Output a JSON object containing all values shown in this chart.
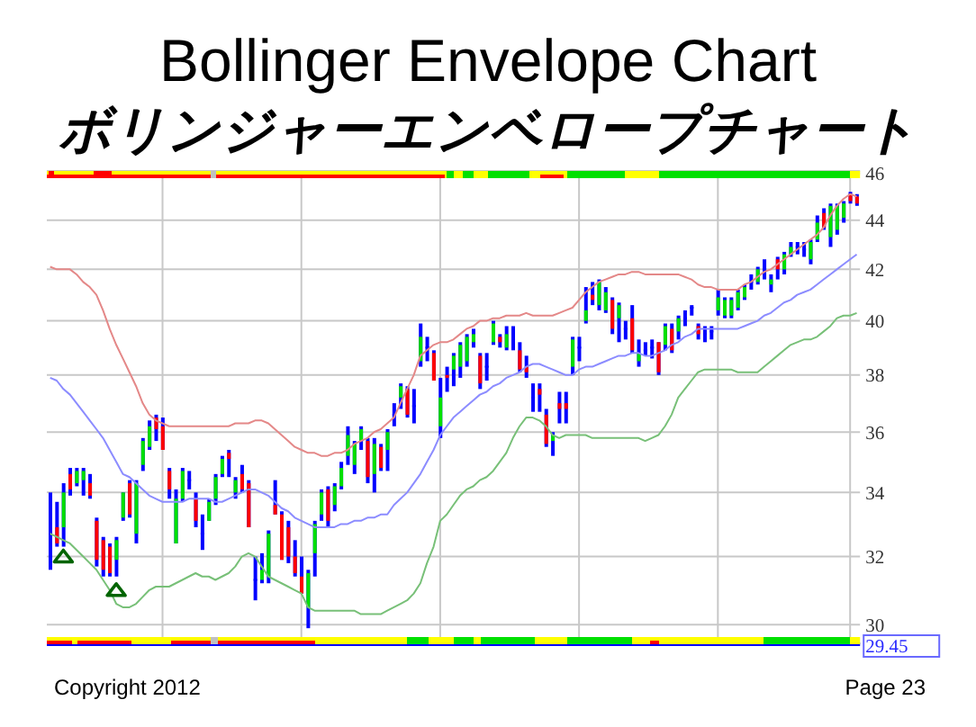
{
  "chart_data": {
    "type": "candlestick",
    "title": "Bollinger Envelope Chart",
    "subtitle": "ボリンジャーエンベロープチャート",
    "categories": [
      null,
      null,
      null,
      null,
      null,
      null,
      null,
      null,
      null,
      null,
      null,
      null,
      null,
      null,
      null,
      null,
      null,
      null,
      null,
      null,
      null,
      null,
      null,
      null,
      null,
      null,
      null,
      null,
      null,
      null,
      null,
      null,
      null,
      null,
      null,
      null,
      null,
      null,
      null,
      null,
      null,
      null,
      null,
      null,
      null,
      null,
      null,
      null,
      null,
      null,
      null,
      null,
      null,
      null,
      null,
      null,
      null,
      null,
      null,
      null,
      null,
      null,
      null,
      null,
      null,
      null,
      null,
      null,
      null,
      null,
      null,
      null,
      null,
      null,
      null,
      null,
      null,
      null,
      null,
      null,
      null,
      null,
      null,
      null,
      null,
      null,
      null,
      null,
      null,
      null,
      null,
      null,
      null,
      null,
      null,
      null,
      null,
      null,
      null,
      null,
      null,
      null,
      null,
      null,
      null,
      null,
      null,
      null,
      null,
      null,
      null,
      null,
      null,
      null,
      null,
      null,
      null,
      null,
      null,
      null,
      null,
      null,
      null
    ],
    "ohlc": [
      [
        32.8,
        34.0,
        31.6,
        32.8
      ],
      [
        32.9,
        33.7,
        32.3,
        32.4
      ],
      [
        32.9,
        34.3,
        32.3,
        34.0
      ],
      [
        34.6,
        34.8,
        33.9,
        34.1
      ],
      [
        34.3,
        34.8,
        34.2,
        34.7
      ],
      [
        34.4,
        34.8,
        33.9,
        34.7
      ],
      [
        34.3,
        34.6,
        33.8,
        33.9
      ],
      [
        33.1,
        33.2,
        31.7,
        31.9
      ],
      [
        32.5,
        32.6,
        31.4,
        31.6
      ],
      [
        32.3,
        32.4,
        31.4,
        31.5
      ],
      [
        31.9,
        32.6,
        31.4,
        32.5
      ],
      [
        33.2,
        34.0,
        33.1,
        34.0
      ],
      [
        34.3,
        34.4,
        33.2,
        33.3
      ],
      [
        32.7,
        34.4,
        32.4,
        34.3
      ],
      [
        34.9,
        35.8,
        34.7,
        35.7
      ],
      [
        35.5,
        36.4,
        35.4,
        36.2
      ],
      [
        36.5,
        36.6,
        35.7,
        36.1
      ],
      [
        36.2,
        36.5,
        35.4,
        35.4
      ],
      [
        34.7,
        34.8,
        33.8,
        34.1
      ],
      [
        32.4,
        34.1,
        32.4,
        33.8
      ],
      [
        33.8,
        34.8,
        33.7,
        34.7
      ],
      [
        34.4,
        34.7,
        34.1,
        34.4
      ],
      [
        33.8,
        34.0,
        32.9,
        33.1
      ],
      [
        32.7,
        33.3,
        32.2,
        32.7
      ],
      [
        33.1,
        33.8,
        33.1,
        33.7
      ],
      [
        33.8,
        34.6,
        33.6,
        34.5
      ],
      [
        34.6,
        35.2,
        34.5,
        35.1
      ],
      [
        35.3,
        35.4,
        34.5,
        35.1
      ],
      [
        34.0,
        34.5,
        33.8,
        34.4
      ],
      [
        34.6,
        34.9,
        34.0,
        34.1
      ],
      [
        34.3,
        34.4,
        32.9,
        32.9
      ],
      [
        31.3,
        32.0,
        30.7,
        31.3
      ],
      [
        31.3,
        32.1,
        31.2,
        31.6
      ],
      [
        31.4,
        32.8,
        31.2,
        32.7
      ],
      [
        33.6,
        34.4,
        33.3,
        33.3
      ],
      [
        33.3,
        33.4,
        31.9,
        31.9
      ],
      [
        32.9,
        33.1,
        31.8,
        32.0
      ],
      [
        32.0,
        32.5,
        31.4,
        31.5
      ],
      [
        31.4,
        32.0,
        30.9,
        30.9
      ],
      [
        30.5,
        31.6,
        29.9,
        31.5
      ],
      [
        32.1,
        33.1,
        31.4,
        33.0
      ],
      [
        33.3,
        34.1,
        33.1,
        34.0
      ],
      [
        34.1,
        34.2,
        32.9,
        33.1
      ],
      [
        33.6,
        34.3,
        33.4,
        34.2
      ],
      [
        34.2,
        35.0,
        34.1,
        34.8
      ],
      [
        35.2,
        36.2,
        34.9,
        35.9
      ],
      [
        34.9,
        35.7,
        34.6,
        35.6
      ],
      [
        35.7,
        36.2,
        35.4,
        36.1
      ],
      [
        35.7,
        35.8,
        34.3,
        34.5
      ],
      [
        34.6,
        35.8,
        34.0,
        35.6
      ],
      [
        35.5,
        35.6,
        34.7,
        34.8
      ],
      [
        35.4,
        36.1,
        34.7,
        36.0
      ],
      [
        36.6,
        37.0,
        36.2,
        36.6
      ],
      [
        37.2,
        37.7,
        36.8,
        37.6
      ],
      [
        37.5,
        37.6,
        36.5,
        36.6
      ],
      [
        36.9,
        37.5,
        36.3,
        36.9
      ],
      [
        38.5,
        39.9,
        38.3,
        39.4
      ],
      [
        39.0,
        39.4,
        38.5,
        39.0
      ],
      [
        38.8,
        38.9,
        37.8,
        37.8
      ],
      [
        36.2,
        37.9,
        35.8,
        37.2
      ],
      [
        38.0,
        38.3,
        37.4,
        37.9
      ],
      [
        38.2,
        38.8,
        37.6,
        38.7
      ],
      [
        38.3,
        39.2,
        37.9,
        39.1
      ],
      [
        38.5,
        39.5,
        38.3,
        39.4
      ],
      [
        39.2,
        39.7,
        39.0,
        39.5
      ],
      [
        38.7,
        38.8,
        37.5,
        37.7
      ],
      [
        38.3,
        38.8,
        37.8,
        38.3
      ],
      [
        39.2,
        40.0,
        39.1,
        39.9
      ],
      [
        39.4,
        39.5,
        39.0,
        39.2
      ],
      [
        39.0,
        39.8,
        38.9,
        39.5
      ],
      [
        39.3,
        39.8,
        38.9,
        39.3
      ],
      [
        38.9,
        39.2,
        38.1,
        38.2
      ],
      [
        38.3,
        38.7,
        37.9,
        38.1
      ],
      [
        37.2,
        37.7,
        36.7,
        37.2
      ],
      [
        37.5,
        37.7,
        36.7,
        37.3
      ],
      [
        36.6,
        36.8,
        35.5,
        35.6
      ],
      [
        35.7,
        36.0,
        35.2,
        35.9
      ],
      [
        37.0,
        37.4,
        36.3,
        36.8
      ],
      [
        37.0,
        37.4,
        36.3,
        36.8
      ],
      [
        38.3,
        39.4,
        38.0,
        39.3
      ],
      [
        39.0,
        39.4,
        38.5,
        39.0
      ],
      [
        40.0,
        41.3,
        39.9,
        40.4
      ],
      [
        41.0,
        41.5,
        40.6,
        40.8
      ],
      [
        40.6,
        41.6,
        40.4,
        41.5
      ],
      [
        40.4,
        41.3,
        40.3,
        41.1
      ],
      [
        40.8,
        40.9,
        39.5,
        39.7
      ],
      [
        40.1,
        40.7,
        39.2,
        40.6
      ],
      [
        39.7,
        40.0,
        39.3,
        39.7
      ],
      [
        40.1,
        40.6,
        38.8,
        38.9
      ],
      [
        38.5,
        39.3,
        38.3,
        38.8
      ],
      [
        38.9,
        39.2,
        38.7,
        38.9
      ],
      [
        39.0,
        39.3,
        38.6,
        39.0
      ],
      [
        39.2,
        39.2,
        38.0,
        38.1
      ],
      [
        39.1,
        39.9,
        38.9,
        39.8
      ],
      [
        39.7,
        39.9,
        38.8,
        38.9
      ],
      [
        39.6,
        40.2,
        39.3,
        40.1
      ],
      [
        40.1,
        40.4,
        39.8,
        40.1
      ],
      [
        40.5,
        40.6,
        40.2,
        40.5
      ],
      [
        39.8,
        39.9,
        39.3,
        39.5
      ],
      [
        39.5,
        39.8,
        39.2,
        39.5
      ],
      [
        39.6,
        39.8,
        39.3,
        39.6
      ],
      [
        40.4,
        41.2,
        40.2,
        40.9
      ],
      [
        40.2,
        40.9,
        40.1,
        40.8
      ],
      [
        40.2,
        40.9,
        40.1,
        40.8
      ],
      [
        40.5,
        41.2,
        40.4,
        41.1
      ],
      [
        40.9,
        41.4,
        40.8,
        41.3
      ],
      [
        41.5,
        41.8,
        41.2,
        41.5
      ],
      [
        41.5,
        42.1,
        41.4,
        42.0
      ],
      [
        42.0,
        42.4,
        41.6,
        42.0
      ],
      [
        41.4,
        41.8,
        41.1,
        41.6
      ],
      [
        42.4,
        42.5,
        41.6,
        42.0
      ],
      [
        42.0,
        42.7,
        41.8,
        42.6
      ],
      [
        42.6,
        43.1,
        42.5,
        42.9
      ],
      [
        42.9,
        43.1,
        42.6,
        42.9
      ],
      [
        42.8,
        43.1,
        42.5,
        42.8
      ],
      [
        42.4,
        43.2,
        42.2,
        43.1
      ],
      [
        43.2,
        44.2,
        43.1,
        43.9
      ],
      [
        44.3,
        44.5,
        43.6,
        43.7
      ],
      [
        43.3,
        44.7,
        42.9,
        44.6
      ],
      [
        43.6,
        44.7,
        43.4,
        44.6
      ],
      [
        44.1,
        44.8,
        43.9,
        44.7
      ],
      [
        45.1,
        45.2,
        44.7,
        44.8
      ],
      [
        45.0,
        45.1,
        44.6,
        44.7
      ]
    ],
    "color": "#0000ff",
    "colors": [
      "#0000ff",
      "#ff0000",
      "#00e000",
      "#ff0000",
      "#00e000",
      "#00e000",
      "#ff0000",
      "#ff0000",
      "#ff0000",
      "#ff0000",
      "#00e000",
      "#00e000",
      "#ff0000",
      "#00e000",
      "#00e000",
      "#00e000",
      "#ff0000",
      "#ff0000",
      "#ff0000",
      "#00e000",
      "#00e000",
      "#0000ff",
      "#ff0000",
      "#0000ff",
      "#00e000",
      "#00e000",
      "#00e000",
      "#ff0000",
      "#00e000",
      "#ff0000",
      "#ff0000",
      "#0000ff",
      "#00e000",
      "#00e000",
      "#ff0000",
      "#ff0000",
      "#ff0000",
      "#ff0000",
      "#ff0000",
      "#00e000",
      "#00e000",
      "#00e000",
      "#ff0000",
      "#00e000",
      "#00e000",
      "#00e000",
      "#00e000",
      "#00e000",
      "#ff0000",
      "#00e000",
      "#ff0000",
      "#00e000",
      "#0000ff",
      "#00e000",
      "#ff0000",
      "#0000ff",
      "#00e000",
      "#0000ff",
      "#ff0000",
      "#00e000",
      "#ff0000",
      "#00e000",
      "#00e000",
      "#00e000",
      "#00e000",
      "#ff0000",
      "#0000ff",
      "#00e000",
      "#ff0000",
      "#00e000",
      "#0000ff",
      "#ff0000",
      "#ff0000",
      "#0000ff",
      "#ff0000",
      "#ff0000",
      "#00e000",
      "#ff0000",
      "#ff0000",
      "#00e000",
      "#0000ff",
      "#00e000",
      "#ff0000",
      "#00e000",
      "#00e000",
      "#ff0000",
      "#00e000",
      "#0000ff",
      "#ff0000",
      "#00e000",
      "#0000ff",
      "#0000ff",
      "#ff0000",
      "#00e000",
      "#ff0000",
      "#00e000",
      "#0000ff",
      "#0000ff",
      "#ff0000",
      "#0000ff",
      "#0000ff",
      "#00e000",
      "#00e000",
      "#00e000",
      "#00e000",
      "#00e000",
      "#0000ff",
      "#00e000",
      "#0000ff",
      "#00e000",
      "#ff0000",
      "#00e000",
      "#00e000",
      "#0000ff",
      "#0000ff",
      "#00e000",
      "#00e000",
      "#ff0000",
      "#00e000",
      "#00e000",
      "#00e000",
      "#ff0000",
      "#ff0000"
    ],
    "series": [
      {
        "type": "line",
        "color": "#e48888",
        "values": [
          42.1,
          42.0,
          42.0,
          42.0,
          41.8,
          41.5,
          41.3,
          41.0,
          40.4,
          39.7,
          39.1,
          38.6,
          38.1,
          37.6,
          37.0,
          36.6,
          36.4,
          36.3,
          36.2,
          36.2,
          36.2,
          36.2,
          36.2,
          36.2,
          36.2,
          36.2,
          36.2,
          36.2,
          36.3,
          36.3,
          36.3,
          36.4,
          36.4,
          36.3,
          36.1,
          35.9,
          35.7,
          35.5,
          35.4,
          35.3,
          35.3,
          35.2,
          35.2,
          35.3,
          35.3,
          35.4,
          35.6,
          35.7,
          35.8,
          36.0,
          36.1,
          36.3,
          36.5,
          37.0,
          37.5,
          38.0,
          38.7,
          38.9,
          39.1,
          39.2,
          39.2,
          39.3,
          39.5,
          39.7,
          39.8,
          40.0,
          40.0,
          40.1,
          40.1,
          40.2,
          40.2,
          40.2,
          40.3,
          40.2,
          40.2,
          40.2,
          40.2,
          40.3,
          40.4,
          40.5,
          40.8,
          41.1,
          41.3,
          41.5,
          41.6,
          41.7,
          41.8,
          41.8,
          41.9,
          41.9,
          41.8,
          41.8,
          41.8,
          41.8,
          41.8,
          41.8,
          41.7,
          41.6,
          41.4,
          41.3,
          41.3,
          41.2,
          41.2,
          41.2,
          41.2,
          41.4,
          41.5,
          41.7,
          41.9,
          42.0,
          42.2,
          42.4,
          42.6,
          42.8,
          43.0,
          43.2,
          43.4,
          43.7,
          44.2,
          44.6,
          44.9,
          45.1,
          45.0
        ]
      },
      {
        "type": "line",
        "color": "#8c8cff",
        "values": [
          37.9,
          37.8,
          37.5,
          37.3,
          37.0,
          36.7,
          36.4,
          36.1,
          35.8,
          35.4,
          35.0,
          34.6,
          34.5,
          34.3,
          34.1,
          33.9,
          33.8,
          33.7,
          33.7,
          33.7,
          33.7,
          33.8,
          33.8,
          33.8,
          33.8,
          33.7,
          33.7,
          33.8,
          33.9,
          34.0,
          34.1,
          34.1,
          34.0,
          33.9,
          33.7,
          33.5,
          33.4,
          33.2,
          33.1,
          33.0,
          32.9,
          32.9,
          32.9,
          32.9,
          33.0,
          33.0,
          33.1,
          33.1,
          33.2,
          33.2,
          33.3,
          33.3,
          33.6,
          33.8,
          34.0,
          34.3,
          34.6,
          35.0,
          35.4,
          35.9,
          36.2,
          36.5,
          36.7,
          36.9,
          37.1,
          37.3,
          37.4,
          37.6,
          37.7,
          37.9,
          38.0,
          38.1,
          38.3,
          38.4,
          38.4,
          38.3,
          38.2,
          38.1,
          38.0,
          38.0,
          38.2,
          38.3,
          38.3,
          38.4,
          38.5,
          38.6,
          38.7,
          38.7,
          38.8,
          38.8,
          38.7,
          38.7,
          38.8,
          38.9,
          39.1,
          39.2,
          39.4,
          39.5,
          39.7,
          39.7,
          39.7,
          39.7,
          39.7,
          39.7,
          39.7,
          39.8,
          39.9,
          40.0,
          40.2,
          40.3,
          40.5,
          40.7,
          40.8,
          41.0,
          41.1,
          41.2,
          41.4,
          41.6,
          41.8,
          42.0,
          42.2,
          42.4,
          42.6
        ]
      },
      {
        "type": "line",
        "color": "#78c078",
        "values": [
          32.7,
          32.6,
          32.5,
          32.4,
          32.2,
          32.0,
          31.8,
          31.6,
          31.3,
          31.0,
          30.6,
          30.5,
          30.5,
          30.6,
          30.8,
          31.0,
          31.1,
          31.1,
          31.1,
          31.2,
          31.3,
          31.4,
          31.5,
          31.4,
          31.4,
          31.3,
          31.4,
          31.5,
          31.7,
          32.0,
          32.1,
          32.0,
          31.7,
          31.4,
          31.3,
          31.2,
          31.1,
          31.0,
          30.9,
          30.5,
          30.4,
          30.4,
          30.4,
          30.4,
          30.4,
          30.4,
          30.4,
          30.3,
          30.3,
          30.3,
          30.3,
          30.4,
          30.5,
          30.6,
          30.7,
          30.9,
          31.2,
          31.8,
          32.3,
          33.1,
          33.3,
          33.6,
          33.9,
          34.1,
          34.2,
          34.4,
          34.5,
          34.7,
          35.0,
          35.3,
          35.8,
          36.2,
          36.5,
          36.5,
          36.4,
          36.2,
          35.9,
          35.8,
          35.9,
          35.9,
          35.9,
          35.9,
          35.8,
          35.8,
          35.8,
          35.8,
          35.8,
          35.8,
          35.8,
          35.8,
          35.7,
          35.8,
          35.9,
          36.2,
          36.6,
          37.2,
          37.5,
          37.8,
          38.1,
          38.2,
          38.2,
          38.2,
          38.2,
          38.2,
          38.1,
          38.1,
          38.1,
          38.1,
          38.3,
          38.5,
          38.7,
          38.9,
          39.1,
          39.2,
          39.3,
          39.3,
          39.4,
          39.6,
          39.8,
          40.1,
          40.2,
          40.2,
          40.3
        ]
      },
      {
        "type": "scatter",
        "color": "#006400",
        "marker": "triangle",
        "values": [
          null,
          null,
          32.0,
          null,
          null,
          null,
          null,
          null,
          null,
          null,
          31.0,
          null,
          null,
          null,
          null,
          null,
          null,
          null,
          null,
          null,
          null,
          null,
          null,
          null,
          null,
          null,
          null,
          null,
          null,
          null,
          null,
          null,
          null,
          null,
          null,
          null,
          null,
          null,
          null,
          null,
          null,
          null,
          null,
          null,
          null,
          null,
          null,
          null,
          null,
          null,
          null,
          null,
          null,
          null,
          null,
          null,
          null,
          null,
          null,
          null,
          null,
          null,
          null,
          null,
          null,
          null,
          null,
          null,
          null,
          null,
          null,
          null,
          null,
          null,
          null,
          null,
          null,
          null,
          null,
          null,
          null,
          null,
          null,
          null,
          null,
          null,
          null,
          null,
          null,
          null,
          null,
          null,
          null,
          null,
          null,
          null,
          null,
          null,
          null,
          null,
          null,
          null,
          null,
          null,
          null,
          null,
          null,
          null,
          null,
          null,
          null,
          null,
          null,
          null,
          null,
          null,
          null,
          null,
          null,
          null,
          null,
          null,
          null
        ]
      }
    ],
    "log": true,
    "ylim": [
      29.45,
      46.1
    ],
    "yticks": [
      {
        "value": 29.45,
        "label": "29.45"
      },
      30,
      32,
      34,
      36,
      38,
      40,
      42,
      44,
      46
    ],
    "grid": true,
    "tick_labels": "y",
    "annotations": [
      "Copyright 2012",
      "Page 23"
    ]
  }
}
